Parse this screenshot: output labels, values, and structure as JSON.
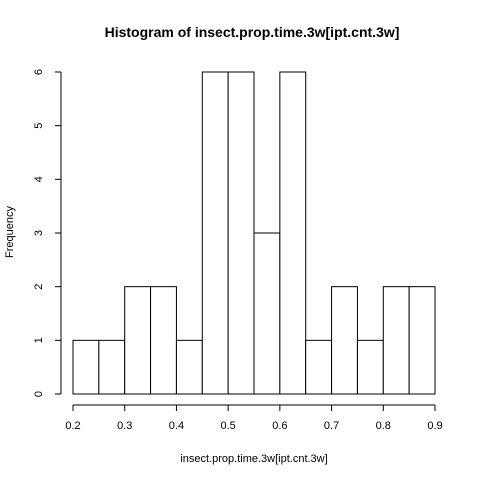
{
  "chart_data": {
    "type": "bar",
    "subtype": "histogram",
    "title": "Histogram of insect.prop.time.3w[ipt.cnt.3w]",
    "xlabel": "insect.prop.time.3w[ipt.cnt.3w]",
    "ylabel": "Frequency",
    "bins": [
      {
        "x0": 0.2,
        "x1": 0.25,
        "value": 1
      },
      {
        "x0": 0.25,
        "x1": 0.3,
        "value": 1
      },
      {
        "x0": 0.3,
        "x1": 0.35,
        "value": 2
      },
      {
        "x0": 0.35,
        "x1": 0.4,
        "value": 2
      },
      {
        "x0": 0.4,
        "x1": 0.45,
        "value": 1
      },
      {
        "x0": 0.45,
        "x1": 0.5,
        "value": 6
      },
      {
        "x0": 0.5,
        "x1": 0.55,
        "value": 6
      },
      {
        "x0": 0.55,
        "x1": 0.6,
        "value": 3
      },
      {
        "x0": 0.6,
        "x1": 0.65,
        "value": 6
      },
      {
        "x0": 0.65,
        "x1": 0.7,
        "value": 1
      },
      {
        "x0": 0.7,
        "x1": 0.75,
        "value": 2
      },
      {
        "x0": 0.75,
        "x1": 0.8,
        "value": 1
      },
      {
        "x0": 0.8,
        "x1": 0.85,
        "value": 2
      },
      {
        "x0": 0.85,
        "x1": 0.9,
        "value": 2
      }
    ],
    "xlim": [
      0.2,
      0.9
    ],
    "ylim": [
      0,
      6
    ],
    "xticks": [
      "0.2",
      "0.3",
      "0.4",
      "0.5",
      "0.6",
      "0.7",
      "0.8",
      "0.9"
    ],
    "yticks": [
      "0",
      "1",
      "2",
      "3",
      "4",
      "5",
      "6"
    ],
    "grid": false,
    "colors": {
      "bar_fill": "#ffffff",
      "bar_stroke": "#000000"
    }
  }
}
